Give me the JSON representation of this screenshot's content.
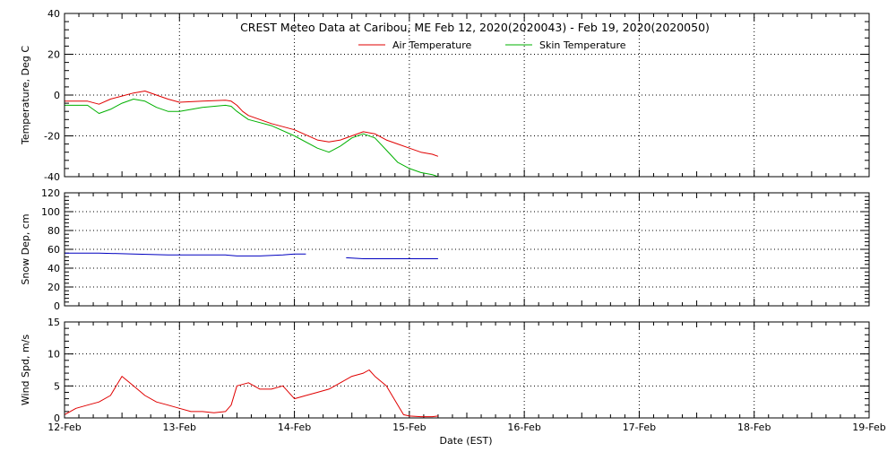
{
  "chart_data": {
    "type": "line",
    "title": "CREST Meteo Data at Caribou, ME   Feb 12, 2020(2020043) - Feb 19, 2020(2020050)",
    "xlabel": "Date (EST)",
    "x_ticks": [
      "12-Feb",
      "13-Feb",
      "14-Feb",
      "15-Feb",
      "16-Feb",
      "17-Feb",
      "18-Feb",
      "19-Feb"
    ],
    "xlim": [
      0,
      7
    ],
    "panels": [
      {
        "ylabel": "Temperature, Deg C",
        "ylim": [
          -40,
          40
        ],
        "y_ticks": [
          40,
          20,
          0,
          -20,
          -40
        ],
        "legend": "top-center",
        "series": [
          {
            "name": "Air Temperature",
            "color": "#e00000",
            "x": [
              0,
              0.2,
              0.3,
              0.4,
              0.5,
              0.6,
              0.7,
              0.8,
              0.9,
              1.0,
              1.2,
              1.4,
              1.45,
              1.5,
              1.55,
              1.6,
              1.8,
              2.0,
              2.2,
              2.3,
              2.4,
              2.5,
              2.6,
              2.7,
              2.8,
              2.9,
              3.0,
              3.1,
              3.2,
              3.25
            ],
            "y": [
              -3,
              -3,
              -4.5,
              -2,
              -0.5,
              1,
              2,
              0,
              -2,
              -3.5,
              -3,
              -2.5,
              -3,
              -5,
              -8,
              -10,
              -14,
              -17,
              -22,
              -23,
              -22,
              -20,
              -18,
              -19,
              -22,
              -24,
              -26,
              -28,
              -29,
              -30
            ]
          },
          {
            "name": "Skin Temperature",
            "color": "#00b000",
            "x": [
              0,
              0.2,
              0.3,
              0.4,
              0.5,
              0.6,
              0.7,
              0.8,
              0.9,
              1.0,
              1.2,
              1.4,
              1.45,
              1.5,
              1.55,
              1.6,
              1.8,
              2.0,
              2.2,
              2.3,
              2.4,
              2.5,
              2.6,
              2.7,
              2.8,
              2.9,
              3.0,
              3.1,
              3.2,
              3.25
            ],
            "y": [
              -5,
              -5,
              -9,
              -7,
              -4,
              -2,
              -3,
              -6,
              -8,
              -8,
              -6,
              -5,
              -5.5,
              -8,
              -10,
              -12,
              -15,
              -20,
              -26,
              -28,
              -25,
              -21,
              -19,
              -21,
              -27,
              -33,
              -36,
              -38,
              -39,
              -40
            ]
          }
        ]
      },
      {
        "ylabel": "Snow Dep, cm",
        "ylim": [
          0,
          120
        ],
        "y_ticks": [
          120,
          100,
          80,
          60,
          40,
          20,
          0
        ],
        "legend": "none",
        "series": [
          {
            "color": "#0000c0",
            "x": [
              0,
              0.3,
              0.6,
              0.9,
              1.0,
              1.2,
              1.4,
              1.5,
              1.7,
              1.9,
              2.0,
              2.1,
              2.3,
              2.45,
              2.6,
              2.8,
              3.0,
              3.1,
              3.25
            ],
            "y": [
              56,
              56,
              55,
              54,
              54,
              54,
              54,
              53,
              53,
              54,
              55,
              55,
              null,
              51,
              50,
              50,
              50,
              50,
              50
            ]
          }
        ]
      },
      {
        "ylabel": "Wind Spd, m/s",
        "ylim": [
          0,
          15
        ],
        "y_ticks": [
          15,
          10,
          5,
          0
        ],
        "legend": "none",
        "series": [
          {
            "color": "#e00000",
            "x": [
              0,
              0.1,
              0.2,
              0.3,
              0.4,
              0.5,
              0.6,
              0.7,
              0.8,
              0.9,
              1.0,
              1.1,
              1.2,
              1.3,
              1.4,
              1.45,
              1.5,
              1.6,
              1.7,
              1.8,
              1.9,
              2.0,
              2.1,
              2.2,
              2.3,
              2.4,
              2.5,
              2.6,
              2.65,
              2.7,
              2.8,
              2.9,
              2.95,
              3.0,
              3.1,
              3.2,
              3.25
            ],
            "y": [
              0.5,
              1.5,
              2,
              2.5,
              3.5,
              6.5,
              5,
              3.5,
              2.5,
              2,
              1.5,
              1,
              1,
              0.8,
              1,
              2,
              5,
              5.5,
              4.5,
              4.5,
              5,
              3,
              3.5,
              4,
              4.5,
              5.5,
              6.5,
              7,
              7.5,
              6.5,
              5,
              2,
              0.5,
              0.3,
              0.2,
              0.2,
              0.3
            ]
          }
        ]
      }
    ]
  }
}
